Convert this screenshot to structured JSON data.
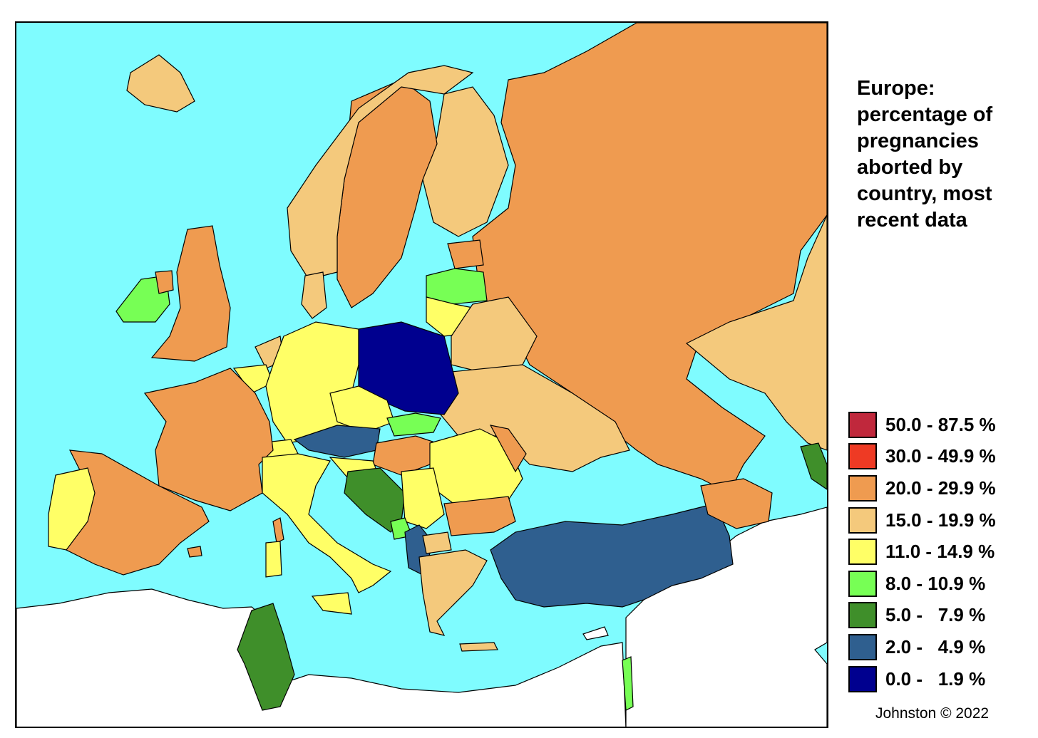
{
  "title_lines": [
    "Europe:",
    "percentage of",
    "pregnancies",
    "aborted by",
    "country, most",
    "recent data"
  ],
  "credit": "Johnston © 2022",
  "colors": {
    "sea": "#7ffcff",
    "outside_region": "#ffffff",
    "border": "#000000"
  },
  "legend": [
    {
      "label": "50.0 - 87.5 %",
      "color": "#c0283c"
    },
    {
      "label": "30.0 - 49.9 %",
      "color": "#ee3a24"
    },
    {
      "label": "20.0 - 29.9 %",
      "color": "#ef9b50"
    },
    {
      "label": "15.0 - 19.9 %",
      "color": "#f4c97c"
    },
    {
      "label": "11.0 - 14.9 %",
      "color": "#ffff66"
    },
    {
      "label": "8.0 - 10.9 %",
      "color": "#77ff55"
    },
    {
      "label": "5.0 -   7.9 %",
      "color": "#3f8f2a"
    },
    {
      "label": "2.0 -   4.9 %",
      "color": "#2f5f8f"
    },
    {
      "label": "0.0 -   1.9 %",
      "color": "#00008f"
    }
  ]
}
